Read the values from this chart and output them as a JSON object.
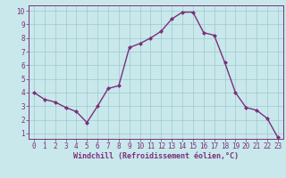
{
  "x": [
    0,
    1,
    2,
    3,
    4,
    5,
    6,
    7,
    8,
    9,
    10,
    11,
    12,
    13,
    14,
    15,
    16,
    17,
    18,
    19,
    20,
    21,
    22,
    23
  ],
  "y": [
    4.0,
    3.5,
    3.3,
    2.9,
    2.6,
    1.8,
    3.0,
    4.3,
    4.5,
    7.3,
    7.6,
    8.0,
    8.5,
    9.4,
    9.9,
    9.9,
    8.4,
    8.2,
    6.2,
    4.0,
    2.9,
    2.7,
    2.1,
    0.7
  ],
  "line_color": "#7B2F7B",
  "marker": "D",
  "marker_size": 2.0,
  "line_width": 1.0,
  "bg_color": "#C8E8EC",
  "grid_color": "#A0C8CC",
  "xlabel": "Windchill (Refroidissement éolien,°C)",
  "xlabel_color": "#7B2F7B",
  "xlabel_fontsize": 6.0,
  "tick_color": "#7B2F7B",
  "tick_fontsize": 5.5,
  "ylim": [
    0.6,
    10.4
  ],
  "xlim": [
    -0.5,
    23.5
  ],
  "yticks": [
    1,
    2,
    3,
    4,
    5,
    6,
    7,
    8,
    9,
    10
  ],
  "xticks": [
    0,
    1,
    2,
    3,
    4,
    5,
    6,
    7,
    8,
    9,
    10,
    11,
    12,
    13,
    14,
    15,
    16,
    17,
    18,
    19,
    20,
    21,
    22,
    23
  ]
}
